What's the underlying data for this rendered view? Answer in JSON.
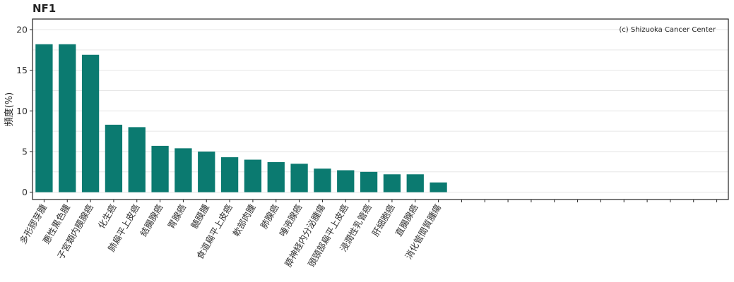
{
  "chart_data": {
    "type": "bar",
    "title": "NF1",
    "ylabel": "頻度(%)",
    "xlabel": "",
    "annotation": "(c) Shizuoka Cancer Center",
    "ylim": [
      -0.9,
      21.3
    ],
    "yticks": [
      0,
      5,
      10,
      15,
      20
    ],
    "grid": true,
    "bar_color": "#0b7a70",
    "total_slots": 30,
    "categories": [
      "多形膠芽腫",
      "悪性黒色腫",
      "子宮類内膜腺癌",
      "化生癌",
      "肺扁平上皮癌",
      "結腸腺癌",
      "胃腺癌",
      "髄膜腫",
      "食道扁平上皮癌",
      "軟部肉腫",
      "肺腺癌",
      "唾液腺癌",
      "膵神経内分泌腫瘍",
      "頭頸部扁平上皮癌",
      "浸潤性乳管癌",
      "肝細胞癌",
      "直腸腺癌",
      "消化管間質腫瘍"
    ],
    "values": [
      18.2,
      18.2,
      16.9,
      8.3,
      8.0,
      5.7,
      5.4,
      5.0,
      4.3,
      4.0,
      3.7,
      3.5,
      2.9,
      2.7,
      2.5,
      2.2,
      2.2,
      1.2
    ]
  }
}
